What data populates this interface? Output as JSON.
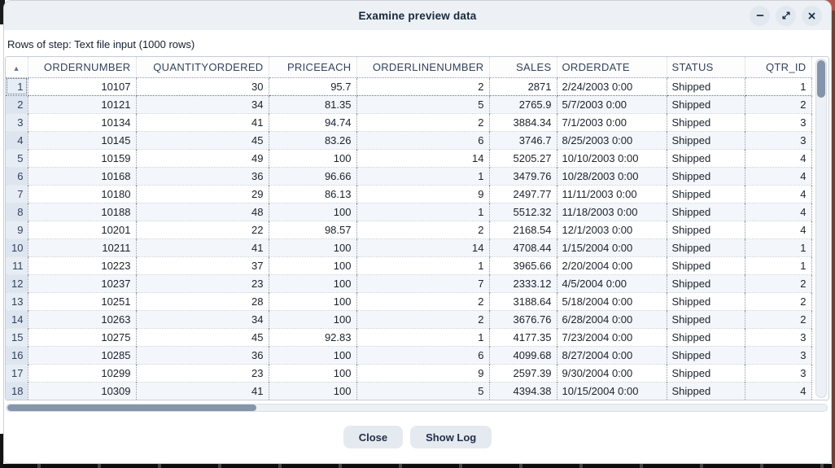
{
  "window": {
    "title": "Examine preview data"
  },
  "subtitle": "Rows of step: Text file input (1000 rows)",
  "table": {
    "sort_indicator": "▲",
    "columns": [
      {
        "label": "ORDERNUMBER",
        "align": "right"
      },
      {
        "label": "QUANTITYORDERED",
        "align": "right"
      },
      {
        "label": "PRICEEACH",
        "align": "right"
      },
      {
        "label": "ORDERLINENUMBER",
        "align": "right"
      },
      {
        "label": "SALES",
        "align": "right"
      },
      {
        "label": "ORDERDATE",
        "align": "left"
      },
      {
        "label": "STATUS",
        "align": "left"
      },
      {
        "label": "QTR_ID",
        "align": "right"
      }
    ],
    "rows": [
      {
        "n": "1",
        "cells": [
          "10107",
          "30",
          "95.7",
          "2",
          "2871",
          "2/24/2003 0:00",
          "Shipped",
          "1"
        ]
      },
      {
        "n": "2",
        "cells": [
          "10121",
          "34",
          "81.35",
          "5",
          "2765.9",
          "5/7/2003 0:00",
          "Shipped",
          "2"
        ]
      },
      {
        "n": "3",
        "cells": [
          "10134",
          "41",
          "94.74",
          "2",
          "3884.34",
          "7/1/2003 0:00",
          "Shipped",
          "3"
        ]
      },
      {
        "n": "4",
        "cells": [
          "10145",
          "45",
          "83.26",
          "6",
          "3746.7",
          "8/25/2003 0:00",
          "Shipped",
          "3"
        ]
      },
      {
        "n": "5",
        "cells": [
          "10159",
          "49",
          "100",
          "14",
          "5205.27",
          "10/10/2003 0:00",
          "Shipped",
          "4"
        ]
      },
      {
        "n": "6",
        "cells": [
          "10168",
          "36",
          "96.66",
          "1",
          "3479.76",
          "10/28/2003 0:00",
          "Shipped",
          "4"
        ]
      },
      {
        "n": "7",
        "cells": [
          "10180",
          "29",
          "86.13",
          "9",
          "2497.77",
          "11/11/2003 0:00",
          "Shipped",
          "4"
        ]
      },
      {
        "n": "8",
        "cells": [
          "10188",
          "48",
          "100",
          "1",
          "5512.32",
          "11/18/2003 0:00",
          "Shipped",
          "4"
        ]
      },
      {
        "n": "9",
        "cells": [
          "10201",
          "22",
          "98.57",
          "2",
          "2168.54",
          "12/1/2003 0:00",
          "Shipped",
          "4"
        ]
      },
      {
        "n": "10",
        "cells": [
          "10211",
          "41",
          "100",
          "14",
          "4708.44",
          "1/15/2004 0:00",
          "Shipped",
          "1"
        ]
      },
      {
        "n": "11",
        "cells": [
          "10223",
          "37",
          "100",
          "1",
          "3965.66",
          "2/20/2004 0:00",
          "Shipped",
          "1"
        ]
      },
      {
        "n": "12",
        "cells": [
          "10237",
          "23",
          "100",
          "7",
          "2333.12",
          "4/5/2004 0:00",
          "Shipped",
          "2"
        ]
      },
      {
        "n": "13",
        "cells": [
          "10251",
          "28",
          "100",
          "2",
          "3188.64",
          "5/18/2004 0:00",
          "Shipped",
          "2"
        ]
      },
      {
        "n": "14",
        "cells": [
          "10263",
          "34",
          "100",
          "2",
          "3676.76",
          "6/28/2004 0:00",
          "Shipped",
          "2"
        ]
      },
      {
        "n": "15",
        "cells": [
          "10275",
          "45",
          "92.83",
          "1",
          "4177.35",
          "7/23/2004 0:00",
          "Shipped",
          "3"
        ]
      },
      {
        "n": "16",
        "cells": [
          "10285",
          "36",
          "100",
          "6",
          "4099.68",
          "8/27/2004 0:00",
          "Shipped",
          "3"
        ]
      },
      {
        "n": "17",
        "cells": [
          "10299",
          "23",
          "100",
          "9",
          "2597.39",
          "9/30/2004 0:00",
          "Shipped",
          "3"
        ]
      },
      {
        "n": "18",
        "cells": [
          "10309",
          "41",
          "100",
          "5",
          "4394.38",
          "10/15/2004 0:00",
          "Shipped",
          "4"
        ]
      }
    ]
  },
  "footer": {
    "close_label": "Close",
    "show_log_label": "Show Log"
  },
  "colors": {
    "titlebar_bg": "#edf1f5",
    "row_number_bg": "#e7edf4",
    "row_alt_bg": "#f3f6fa",
    "scroll_thumb": "#8695aa",
    "button_bg": "#e5eaf0",
    "title_text": "#16283f",
    "selection_border": "#5f6f82"
  }
}
